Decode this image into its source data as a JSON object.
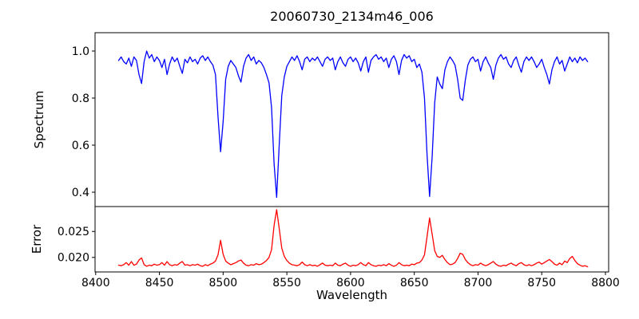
{
  "title": "20060730_2134m46_006",
  "axes": {
    "xlabel": "Wavelength",
    "top_ylabel": "Spectrum",
    "bottom_ylabel": "Error"
  },
  "colors": {
    "spectrum_line": "#0000ff",
    "error_line": "#ff0000",
    "axis": "#000000",
    "background": "#ffffff",
    "text": "#000000"
  },
  "chart_data": {
    "type": "line",
    "title": "20060730_2134m46_006",
    "xlabel": "Wavelength",
    "grid": false,
    "legend": false,
    "xlim": [
      8399.5,
      8802.5
    ],
    "x_ticks": [
      {
        "value": 8400,
        "label": "8400"
      },
      {
        "value": 8450,
        "label": "8450"
      },
      {
        "value": 8500,
        "label": "8500"
      },
      {
        "value": 8550,
        "label": "8550"
      },
      {
        "value": 8600,
        "label": "8600"
      },
      {
        "value": 8650,
        "label": "8650"
      },
      {
        "value": 8700,
        "label": "8700"
      },
      {
        "value": 8750,
        "label": "8750"
      },
      {
        "value": 8800,
        "label": "8800"
      }
    ],
    "x_start": 8418,
    "x_step": 2,
    "n_points": 185,
    "panels": [
      {
        "name": "spectrum",
        "ylabel": "Spectrum",
        "ylim": [
          0.339,
          1.078
        ],
        "y_ticks": [
          {
            "value": 1.0,
            "label": "1.0"
          },
          {
            "value": 0.8,
            "label": "0.8"
          },
          {
            "value": 0.6,
            "label": "0.6"
          },
          {
            "value": 0.4,
            "label": "0.4"
          }
        ],
        "color": "#0000ff",
        "series": "spectrum"
      },
      {
        "name": "error",
        "ylabel": "Error",
        "ylim": [
          0.0172,
          0.0298
        ],
        "y_ticks": [
          {
            "value": 0.025,
            "label": "0.025"
          },
          {
            "value": 0.02,
            "label": "0.020"
          }
        ],
        "color": "#ff0000",
        "series": "error"
      }
    ],
    "absorption_line_minima": [
      {
        "wavelength": 8498,
        "spectrum": 0.57,
        "error_peak": 0.0233
      },
      {
        "wavelength": 8542,
        "spectrum": 0.38,
        "error_peak": 0.0292
      },
      {
        "wavelength": 8662,
        "spectrum": 0.38,
        "error_peak": 0.0276
      }
    ],
    "series": {
      "spectrum": [
        0.96,
        0.975,
        0.955,
        0.945,
        0.97,
        0.935,
        0.975,
        0.96,
        0.9,
        0.862,
        0.955,
        1.0,
        0.97,
        0.985,
        0.955,
        0.975,
        0.96,
        0.93,
        0.965,
        0.9,
        0.945,
        0.975,
        0.955,
        0.97,
        0.935,
        0.905,
        0.965,
        0.95,
        0.975,
        0.955,
        0.965,
        0.945,
        0.97,
        0.98,
        0.96,
        0.975,
        0.955,
        0.94,
        0.9,
        0.72,
        0.572,
        0.7,
        0.88,
        0.935,
        0.96,
        0.945,
        0.93,
        0.895,
        0.868,
        0.935,
        0.97,
        0.985,
        0.96,
        0.975,
        0.945,
        0.96,
        0.95,
        0.93,
        0.9,
        0.865,
        0.76,
        0.52,
        0.378,
        0.6,
        0.81,
        0.89,
        0.935,
        0.955,
        0.975,
        0.96,
        0.98,
        0.955,
        0.92,
        0.965,
        0.975,
        0.955,
        0.97,
        0.96,
        0.975,
        0.955,
        0.935,
        0.965,
        0.975,
        0.96,
        0.97,
        0.92,
        0.955,
        0.975,
        0.95,
        0.935,
        0.965,
        0.975,
        0.955,
        0.97,
        0.95,
        0.915,
        0.955,
        0.975,
        0.91,
        0.96,
        0.975,
        0.985,
        0.965,
        0.975,
        0.955,
        0.97,
        0.93,
        0.965,
        0.98,
        0.955,
        0.9,
        0.96,
        0.985,
        0.97,
        0.98,
        0.955,
        0.965,
        0.93,
        0.945,
        0.91,
        0.8,
        0.56,
        0.382,
        0.55,
        0.78,
        0.89,
        0.86,
        0.84,
        0.92,
        0.955,
        0.975,
        0.96,
        0.94,
        0.88,
        0.8,
        0.79,
        0.875,
        0.94,
        0.965,
        0.975,
        0.955,
        0.965,
        0.915,
        0.955,
        0.975,
        0.95,
        0.93,
        0.88,
        0.94,
        0.97,
        0.985,
        0.965,
        0.975,
        0.945,
        0.93,
        0.96,
        0.975,
        0.94,
        0.91,
        0.955,
        0.975,
        0.96,
        0.975,
        0.955,
        0.93,
        0.945,
        0.965,
        0.93,
        0.9,
        0.86,
        0.92,
        0.955,
        0.975,
        0.945,
        0.96,
        0.915,
        0.945,
        0.975,
        0.955,
        0.97,
        0.95,
        0.975,
        0.96,
        0.97,
        0.955
      ],
      "error": [
        0.0185,
        0.0184,
        0.0186,
        0.019,
        0.0185,
        0.0192,
        0.0185,
        0.0187,
        0.0195,
        0.0199,
        0.0186,
        0.0183,
        0.0185,
        0.0184,
        0.0187,
        0.0185,
        0.0186,
        0.019,
        0.0185,
        0.0192,
        0.0186,
        0.0184,
        0.0186,
        0.0185,
        0.0189,
        0.0192,
        0.0185,
        0.0186,
        0.0184,
        0.0186,
        0.0185,
        0.0187,
        0.0184,
        0.0183,
        0.0186,
        0.0184,
        0.0187,
        0.0189,
        0.0193,
        0.0205,
        0.0233,
        0.0206,
        0.0193,
        0.0189,
        0.0186,
        0.0188,
        0.019,
        0.0193,
        0.0195,
        0.0189,
        0.0185,
        0.0184,
        0.0186,
        0.0185,
        0.0188,
        0.0186,
        0.0187,
        0.019,
        0.0194,
        0.02,
        0.0215,
        0.0262,
        0.0292,
        0.0256,
        0.0218,
        0.0202,
        0.0194,
        0.0189,
        0.0186,
        0.0185,
        0.0184,
        0.0186,
        0.0191,
        0.0186,
        0.0184,
        0.0186,
        0.0184,
        0.0185,
        0.0183,
        0.0186,
        0.0189,
        0.0185,
        0.0184,
        0.0185,
        0.0184,
        0.0189,
        0.0185,
        0.0184,
        0.0187,
        0.0189,
        0.0185,
        0.0183,
        0.0185,
        0.0184,
        0.0186,
        0.019,
        0.0186,
        0.0184,
        0.019,
        0.0186,
        0.0184,
        0.0183,
        0.0185,
        0.0184,
        0.0186,
        0.0184,
        0.0188,
        0.0185,
        0.0183,
        0.0185,
        0.019,
        0.0186,
        0.0184,
        0.0185,
        0.0184,
        0.0187,
        0.0186,
        0.0189,
        0.019,
        0.0195,
        0.0205,
        0.024,
        0.0276,
        0.0245,
        0.0213,
        0.0202,
        0.02,
        0.0204,
        0.0196,
        0.019,
        0.0186,
        0.0187,
        0.019,
        0.0198,
        0.0208,
        0.0206,
        0.0196,
        0.019,
        0.0186,
        0.0184,
        0.0186,
        0.0185,
        0.0189,
        0.0186,
        0.0184,
        0.0186,
        0.0189,
        0.0192,
        0.0187,
        0.0184,
        0.0183,
        0.0185,
        0.0184,
        0.0187,
        0.0189,
        0.0186,
        0.0184,
        0.0188,
        0.019,
        0.0186,
        0.0184,
        0.0186,
        0.0184,
        0.0186,
        0.0189,
        0.0191,
        0.0187,
        0.019,
        0.0193,
        0.0196,
        0.0192,
        0.0187,
        0.0185,
        0.0189,
        0.0186,
        0.0193,
        0.019,
        0.0198,
        0.0202,
        0.0194,
        0.0188,
        0.0185,
        0.0183,
        0.0184,
        0.0182
      ]
    }
  }
}
